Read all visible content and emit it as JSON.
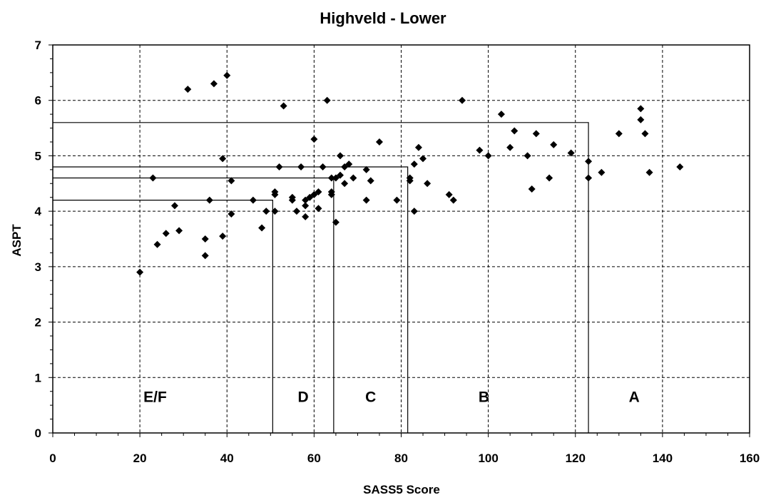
{
  "chart_data": {
    "type": "scatter",
    "title": "Highveld - Lower",
    "xlabel": "SASS5 Score",
    "ylabel": "ASPT",
    "xlim": [
      0,
      160
    ],
    "ylim": [
      0,
      7
    ],
    "xticks": [
      0,
      20,
      40,
      60,
      80,
      100,
      120,
      140,
      160
    ],
    "yticks": [
      0,
      1,
      2,
      3,
      4,
      5,
      6,
      7
    ],
    "grid": true,
    "grid_style": "dashed",
    "marker": "diamond",
    "marker_color": "#000000",
    "points": [
      [
        20,
        2.9
      ],
      [
        23,
        4.6
      ],
      [
        24,
        3.4
      ],
      [
        26,
        3.6
      ],
      [
        28,
        4.1
      ],
      [
        29,
        3.65
      ],
      [
        31,
        6.2
      ],
      [
        35,
        3.5
      ],
      [
        35,
        3.2
      ],
      [
        36,
        4.2
      ],
      [
        37,
        6.3
      ],
      [
        39,
        4.95
      ],
      [
        39,
        3.55
      ],
      [
        40,
        6.45
      ],
      [
        41,
        4.55
      ],
      [
        41,
        3.95
      ],
      [
        46,
        4.2
      ],
      [
        48,
        3.7
      ],
      [
        49,
        4.0
      ],
      [
        51,
        4.0
      ],
      [
        51,
        4.35
      ],
      [
        51,
        4.3
      ],
      [
        52,
        4.8
      ],
      [
        53,
        5.9
      ],
      [
        55,
        4.2
      ],
      [
        55,
        4.25
      ],
      [
        56,
        4.0
      ],
      [
        57,
        4.8
      ],
      [
        58,
        4.1
      ],
      [
        58,
        3.9
      ],
      [
        58,
        4.2
      ],
      [
        59,
        4.25
      ],
      [
        60,
        5.3
      ],
      [
        60,
        4.3
      ],
      [
        61,
        4.35
      ],
      [
        61,
        4.05
      ],
      [
        62,
        4.8
      ],
      [
        63,
        6.0
      ],
      [
        64,
        4.3
      ],
      [
        64,
        4.35
      ],
      [
        64,
        4.6
      ],
      [
        65,
        4.6
      ],
      [
        65,
        3.8
      ],
      [
        66,
        4.65
      ],
      [
        66,
        5.0
      ],
      [
        67,
        4.5
      ],
      [
        67,
        4.8
      ],
      [
        68,
        4.85
      ],
      [
        69,
        4.6
      ],
      [
        72,
        4.75
      ],
      [
        72,
        4.2
      ],
      [
        73,
        4.55
      ],
      [
        75,
        5.25
      ],
      [
        79,
        4.2
      ],
      [
        82,
        4.6
      ],
      [
        82,
        4.55
      ],
      [
        83,
        4.85
      ],
      [
        83,
        4.0
      ],
      [
        84,
        5.15
      ],
      [
        85,
        4.95
      ],
      [
        86,
        4.5
      ],
      [
        91,
        4.3
      ],
      [
        92,
        4.2
      ],
      [
        94,
        6.0
      ],
      [
        98,
        5.1
      ],
      [
        100,
        5.0
      ],
      [
        103,
        5.75
      ],
      [
        105,
        5.15
      ],
      [
        106,
        5.45
      ],
      [
        109,
        5.0
      ],
      [
        110,
        4.4
      ],
      [
        111,
        5.4
      ],
      [
        114,
        4.6
      ],
      [
        115,
        5.2
      ],
      [
        119,
        5.05
      ],
      [
        123,
        4.9
      ],
      [
        123,
        4.6
      ],
      [
        126,
        4.7
      ],
      [
        130,
        5.4
      ],
      [
        135,
        5.85
      ],
      [
        135,
        5.65
      ],
      [
        136,
        5.4
      ],
      [
        137,
        4.7
      ],
      [
        144,
        4.8
      ]
    ],
    "bands": [
      {
        "label": "E/F",
        "label_x": 23.5,
        "label_y": 0.65,
        "boundary_x": 50.5,
        "boundary_y": 4.2
      },
      {
        "label": "D",
        "label_x": 57.5,
        "label_y": 0.65,
        "boundary_x": 64.5,
        "boundary_y": 4.6
      },
      {
        "label": "C",
        "label_x": 73,
        "label_y": 0.65,
        "boundary_x": 81.5,
        "boundary_y": 4.8
      },
      {
        "label": "B",
        "label_x": 99,
        "label_y": 0.65,
        "boundary_x": 123,
        "boundary_y": 5.6
      },
      {
        "label": "A",
        "label_x": 133.5,
        "label_y": 0.65,
        "boundary_x": null,
        "boundary_y": null
      }
    ]
  }
}
